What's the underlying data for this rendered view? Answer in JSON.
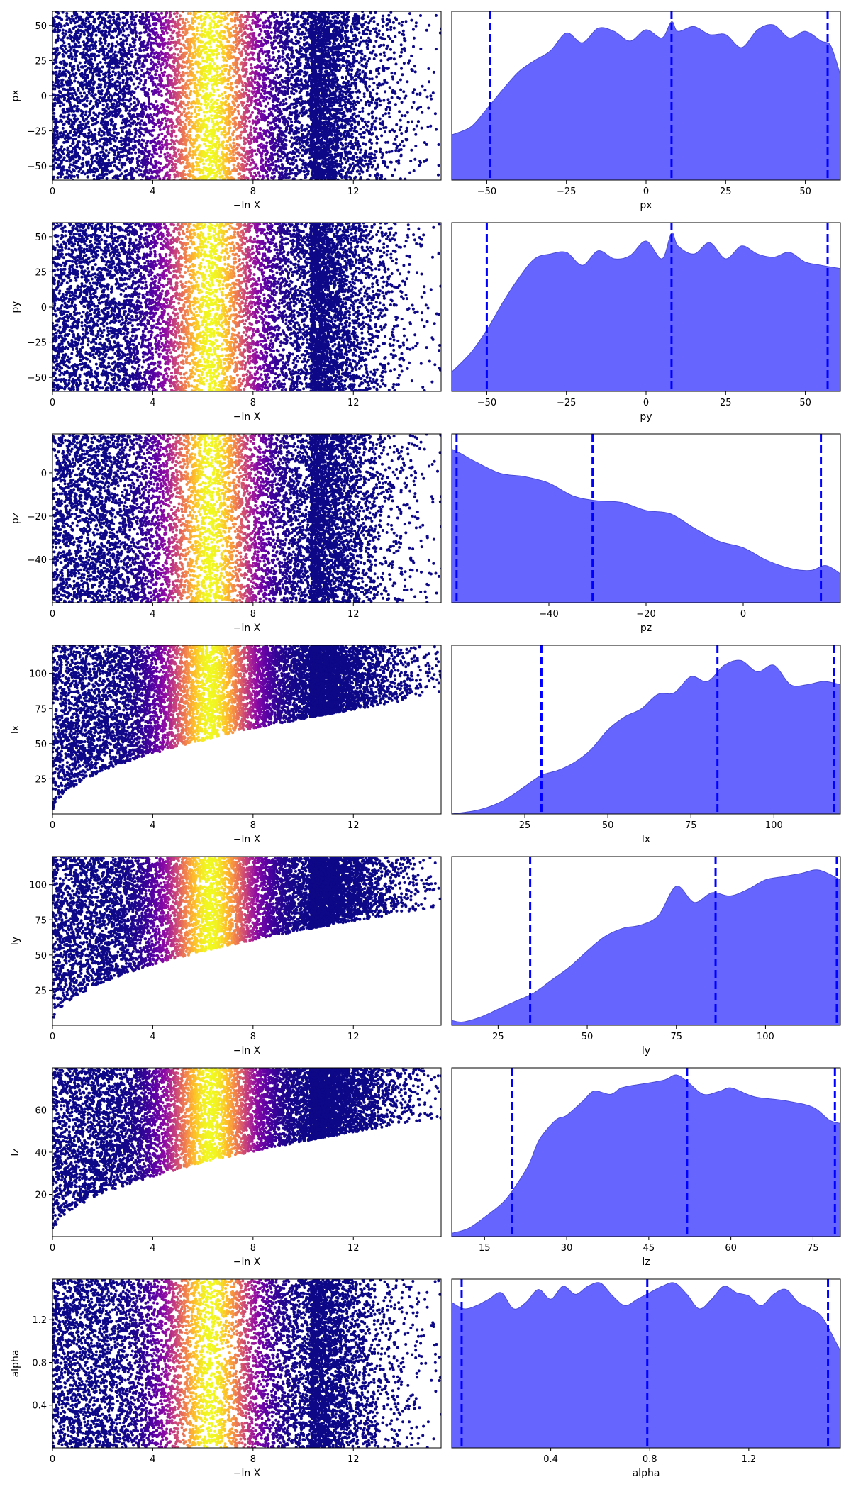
{
  "figure": {
    "scatter_x_label": "−ln X",
    "colors": {
      "kde_fill": "#6666ff",
      "kde_line": "#4b4bd6",
      "quantile_line": "#0000ff",
      "colormap": "plasma"
    }
  },
  "chart_data": [
    {
      "type": "scatter",
      "panel": "trace-px",
      "xlabel": "−ln X",
      "ylabel": "px",
      "xlim": [
        0,
        15.5
      ],
      "ylim": [
        -60,
        60
      ],
      "xticks": [
        0,
        4,
        8,
        12
      ],
      "yticks": [
        -50,
        -25,
        0,
        25,
        50
      ],
      "color_scale": "plasma",
      "color_peak_x": 6.3,
      "point_count_approx": 9000
    },
    {
      "type": "area",
      "panel": "kde-px",
      "xlabel": "px",
      "xlim": [
        -61,
        61
      ],
      "xticks": [
        -50,
        -25,
        0,
        25,
        50
      ],
      "quantiles": [
        -49,
        8,
        57
      ],
      "grid": false,
      "x": [
        -61,
        -55,
        -50,
        -45,
        -40,
        -35,
        -30,
        -25,
        -20,
        -15,
        -10,
        -5,
        0,
        5,
        8,
        10,
        15,
        20,
        25,
        30,
        35,
        40,
        45,
        50,
        55,
        58,
        61
      ],
      "y": [
        0.28,
        0.33,
        0.44,
        0.56,
        0.67,
        0.74,
        0.8,
        0.91,
        0.85,
        0.94,
        0.92,
        0.86,
        0.93,
        0.88,
        0.98,
        0.92,
        0.95,
        0.9,
        0.9,
        0.82,
        0.93,
        0.96,
        0.88,
        0.92,
        0.86,
        0.83,
        0.65
      ]
    },
    {
      "type": "scatter",
      "panel": "trace-py",
      "xlabel": "−ln X",
      "ylabel": "py",
      "xlim": [
        0,
        15.5
      ],
      "ylim": [
        -60,
        60
      ],
      "xticks": [
        0,
        4,
        8,
        12
      ],
      "yticks": [
        -50,
        -25,
        0,
        25,
        50
      ],
      "color_scale": "plasma",
      "color_peak_x": 6.3,
      "point_count_approx": 9000
    },
    {
      "type": "area",
      "panel": "kde-py",
      "xlabel": "py",
      "xlim": [
        -61,
        61
      ],
      "xticks": [
        -50,
        -25,
        0,
        25,
        50
      ],
      "quantiles": [
        -50,
        8,
        57
      ],
      "grid": false,
      "x": [
        -61,
        -55,
        -50,
        -45,
        -40,
        -35,
        -30,
        -25,
        -20,
        -15,
        -10,
        -5,
        0,
        5,
        8,
        10,
        15,
        20,
        25,
        30,
        35,
        40,
        45,
        50,
        55,
        61
      ],
      "y": [
        0.12,
        0.24,
        0.38,
        0.55,
        0.7,
        0.82,
        0.85,
        0.86,
        0.78,
        0.87,
        0.82,
        0.84,
        0.93,
        0.82,
        0.98,
        0.9,
        0.85,
        0.92,
        0.82,
        0.9,
        0.85,
        0.83,
        0.86,
        0.8,
        0.78,
        0.76
      ]
    },
    {
      "type": "scatter",
      "panel": "trace-pz",
      "xlabel": "−ln X",
      "ylabel": "pz",
      "xlim": [
        0,
        15.5
      ],
      "ylim": [
        -60,
        18
      ],
      "xticks": [
        0,
        4,
        8,
        12
      ],
      "yticks": [
        -40,
        -20,
        0
      ],
      "color_scale": "plasma",
      "color_peak_x": 6.3,
      "point_count_approx": 9000
    },
    {
      "type": "area",
      "panel": "kde-pz",
      "xlabel": "pz",
      "xlim": [
        -60,
        20
      ],
      "xticks": [
        -40,
        -20,
        0
      ],
      "quantiles": [
        -59,
        -31,
        16
      ],
      "grid": false,
      "x": [
        -60,
        -58,
        -55,
        -50,
        -45,
        -40,
        -35,
        -30,
        -25,
        -20,
        -15,
        -10,
        -5,
        0,
        5,
        10,
        14,
        17,
        20
      ],
      "y": [
        0.95,
        0.92,
        0.87,
        0.8,
        0.78,
        0.74,
        0.66,
        0.63,
        0.62,
        0.57,
        0.55,
        0.46,
        0.38,
        0.34,
        0.26,
        0.21,
        0.2,
        0.23,
        0.18
      ]
    },
    {
      "type": "scatter",
      "panel": "trace-lx",
      "xlabel": "−ln X",
      "ylabel": "lx",
      "xlim": [
        0,
        15.5
      ],
      "ylim": [
        0,
        120
      ],
      "xticks": [
        0,
        4,
        8,
        12
      ],
      "yticks": [
        25,
        50,
        75,
        100
      ],
      "color_scale": "plasma",
      "color_peak_x": 6.3,
      "point_count_approx": 9000
    },
    {
      "type": "area",
      "panel": "kde-lx",
      "xlabel": "lx",
      "xlim": [
        3,
        120
      ],
      "xticks": [
        25,
        50,
        75,
        100
      ],
      "quantiles": [
        30,
        83,
        118
      ],
      "grid": false,
      "x": [
        3,
        10,
        15,
        20,
        25,
        30,
        35,
        40,
        45,
        50,
        55,
        60,
        65,
        70,
        75,
        80,
        85,
        90,
        95,
        100,
        105,
        110,
        115,
        120
      ],
      "y": [
        0.0,
        0.02,
        0.05,
        0.1,
        0.17,
        0.24,
        0.27,
        0.32,
        0.4,
        0.52,
        0.6,
        0.65,
        0.74,
        0.75,
        0.85,
        0.82,
        0.92,
        0.95,
        0.88,
        0.92,
        0.8,
        0.8,
        0.82,
        0.8
      ]
    },
    {
      "type": "scatter",
      "panel": "trace-ly",
      "xlabel": "−ln X",
      "ylabel": "ly",
      "xlim": [
        0,
        15.5
      ],
      "ylim": [
        0,
        120
      ],
      "xticks": [
        0,
        4,
        8,
        12
      ],
      "yticks": [
        25,
        50,
        75,
        100
      ],
      "color_scale": "plasma",
      "color_peak_x": 6.3,
      "point_count_approx": 9000
    },
    {
      "type": "area",
      "panel": "kde-ly",
      "xlabel": "ly",
      "xlim": [
        12,
        121
      ],
      "xticks": [
        25,
        50,
        75,
        100
      ],
      "quantiles": [
        34,
        86,
        120
      ],
      "grid": false,
      "x": [
        12,
        15,
        20,
        25,
        30,
        35,
        40,
        45,
        50,
        55,
        60,
        65,
        70,
        75,
        80,
        85,
        90,
        95,
        100,
        105,
        110,
        115,
        121
      ],
      "y": [
        0.03,
        0.02,
        0.05,
        0.1,
        0.15,
        0.2,
        0.28,
        0.36,
        0.46,
        0.55,
        0.6,
        0.62,
        0.68,
        0.86,
        0.76,
        0.82,
        0.8,
        0.84,
        0.9,
        0.92,
        0.94,
        0.96,
        0.9
      ]
    },
    {
      "type": "scatter",
      "panel": "trace-lz",
      "xlabel": "−ln X",
      "ylabel": "lz",
      "xlim": [
        0,
        15.5
      ],
      "ylim": [
        0,
        80
      ],
      "xticks": [
        0,
        4,
        8,
        12
      ],
      "yticks": [
        20,
        40,
        60
      ],
      "color_scale": "plasma",
      "color_peak_x": 6.3,
      "point_count_approx": 9000
    },
    {
      "type": "area",
      "panel": "kde-lz",
      "xlabel": "lz",
      "xlim": [
        9,
        80
      ],
      "xticks": [
        15,
        30,
        45,
        60,
        75
      ],
      "quantiles": [
        20,
        52,
        79
      ],
      "grid": false,
      "x": [
        9,
        12,
        15,
        18,
        20,
        23,
        25,
        28,
        30,
        33,
        35,
        38,
        40,
        43,
        45,
        48,
        50,
        52,
        55,
        58,
        60,
        63,
        65,
        70,
        75,
        78,
        80
      ],
      "y": [
        0.02,
        0.05,
        0.12,
        0.2,
        0.28,
        0.44,
        0.6,
        0.72,
        0.75,
        0.84,
        0.9,
        0.88,
        0.92,
        0.94,
        0.95,
        0.97,
        1.0,
        0.96,
        0.88,
        0.9,
        0.92,
        0.88,
        0.86,
        0.84,
        0.8,
        0.72,
        0.7
      ]
    },
    {
      "type": "scatter",
      "panel": "trace-alpha",
      "xlabel": "−ln X",
      "ylabel": "alpha",
      "xlim": [
        0,
        15.5
      ],
      "ylim": [
        0,
        1.58
      ],
      "xticks": [
        0,
        4,
        8,
        12
      ],
      "yticks": [
        0.4,
        0.8,
        1.2
      ],
      "color_scale": "plasma",
      "color_peak_x": 6.3,
      "point_count_approx": 9000
    },
    {
      "type": "area",
      "panel": "kde-alpha",
      "xlabel": "alpha",
      "xlim": [
        0,
        1.57
      ],
      "xticks": [
        0.4,
        0.8,
        1.2
      ],
      "quantiles": [
        0.04,
        0.79,
        1.52
      ],
      "grid": false,
      "x": [
        0,
        0.05,
        0.1,
        0.15,
        0.2,
        0.25,
        0.3,
        0.35,
        0.4,
        0.45,
        0.5,
        0.55,
        0.6,
        0.65,
        0.7,
        0.75,
        0.8,
        0.85,
        0.9,
        0.95,
        1.0,
        1.05,
        1.1,
        1.15,
        1.2,
        1.25,
        1.3,
        1.35,
        1.4,
        1.45,
        1.5,
        1.57
      ],
      "y": [
        0.9,
        0.86,
        0.88,
        0.92,
        0.96,
        0.86,
        0.9,
        0.98,
        0.92,
        1.0,
        0.95,
        1.0,
        1.02,
        0.94,
        0.88,
        0.92,
        0.96,
        1.0,
        1.02,
        0.95,
        0.86,
        0.92,
        1.0,
        0.96,
        0.94,
        0.88,
        0.95,
        0.98,
        0.9,
        0.86,
        0.8,
        0.6
      ]
    }
  ]
}
